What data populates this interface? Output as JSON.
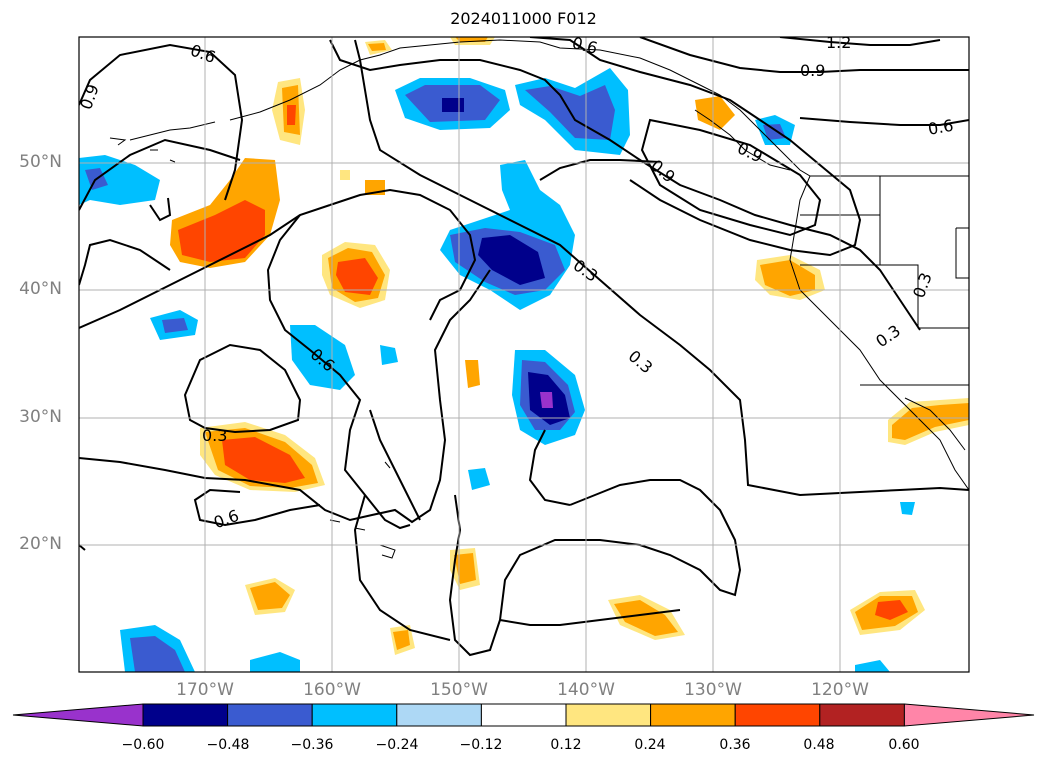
{
  "title": "2024011000 F012",
  "lat_labels": [
    "50°N",
    "40°N",
    "30°N",
    "20°N"
  ],
  "lon_labels": [
    "170°W",
    "160°W",
    "150°W",
    "140°W",
    "130°W",
    "120°W"
  ],
  "contour_labels": [
    "0.6",
    "0.9",
    "1.2",
    "0.9",
    "0.6",
    "0.6",
    "0.9",
    "0.9",
    "0.3",
    "0.6",
    "0.3",
    "0.3",
    "0.3",
    "0.6",
    "0.3"
  ],
  "colorbar": {
    "ticks": [
      "−0.60",
      "−0.48",
      "−0.36",
      "−0.24",
      "−0.12",
      "0.12",
      "0.24",
      "0.36",
      "0.48",
      "0.60"
    ],
    "colors": [
      "#9932cc",
      "#00008b",
      "#3a5bd0",
      "#00bfff",
      "#add8f5",
      "#ffffff",
      "#ffe680",
      "#ffa500",
      "#ff4500",
      "#b22222",
      "#ff85a8"
    ]
  },
  "colors": {
    "gridline": "#b0b0b0",
    "contour": "#000000",
    "axis_label": "#808080"
  }
}
